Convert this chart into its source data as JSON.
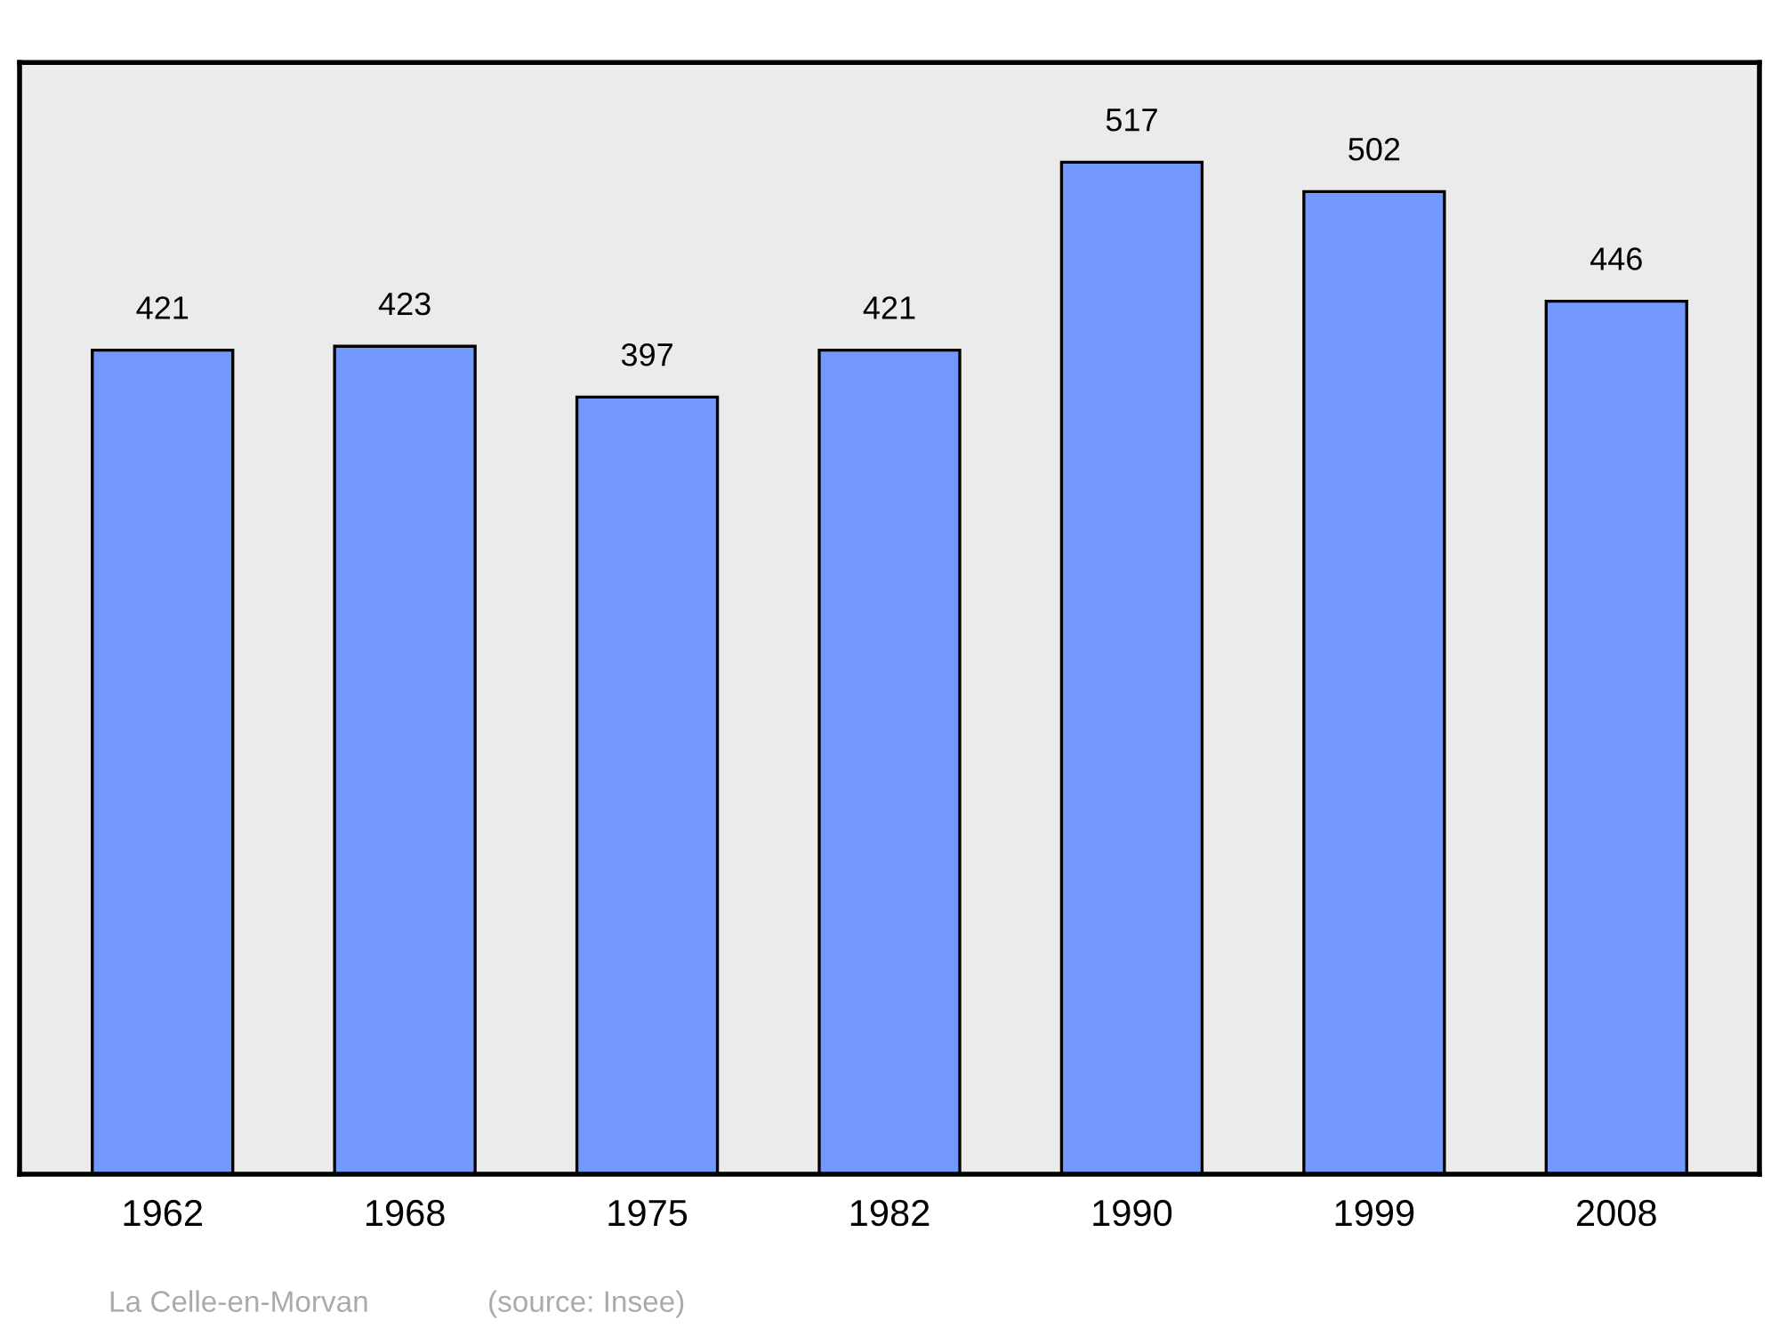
{
  "chart_data": {
    "type": "bar",
    "categories": [
      "1962",
      "1968",
      "1975",
      "1982",
      "1990",
      "1999",
      "2008"
    ],
    "values": [
      421,
      423,
      397,
      421,
      517,
      502,
      446
    ],
    "color": "#7399ff",
    "ylim": [
      0,
      568
    ],
    "tick_labels": "x",
    "data_labels": true,
    "grid": false,
    "annotations": [
      "La Celle-en-Morvan",
      "(source: Insee)"
    ]
  }
}
